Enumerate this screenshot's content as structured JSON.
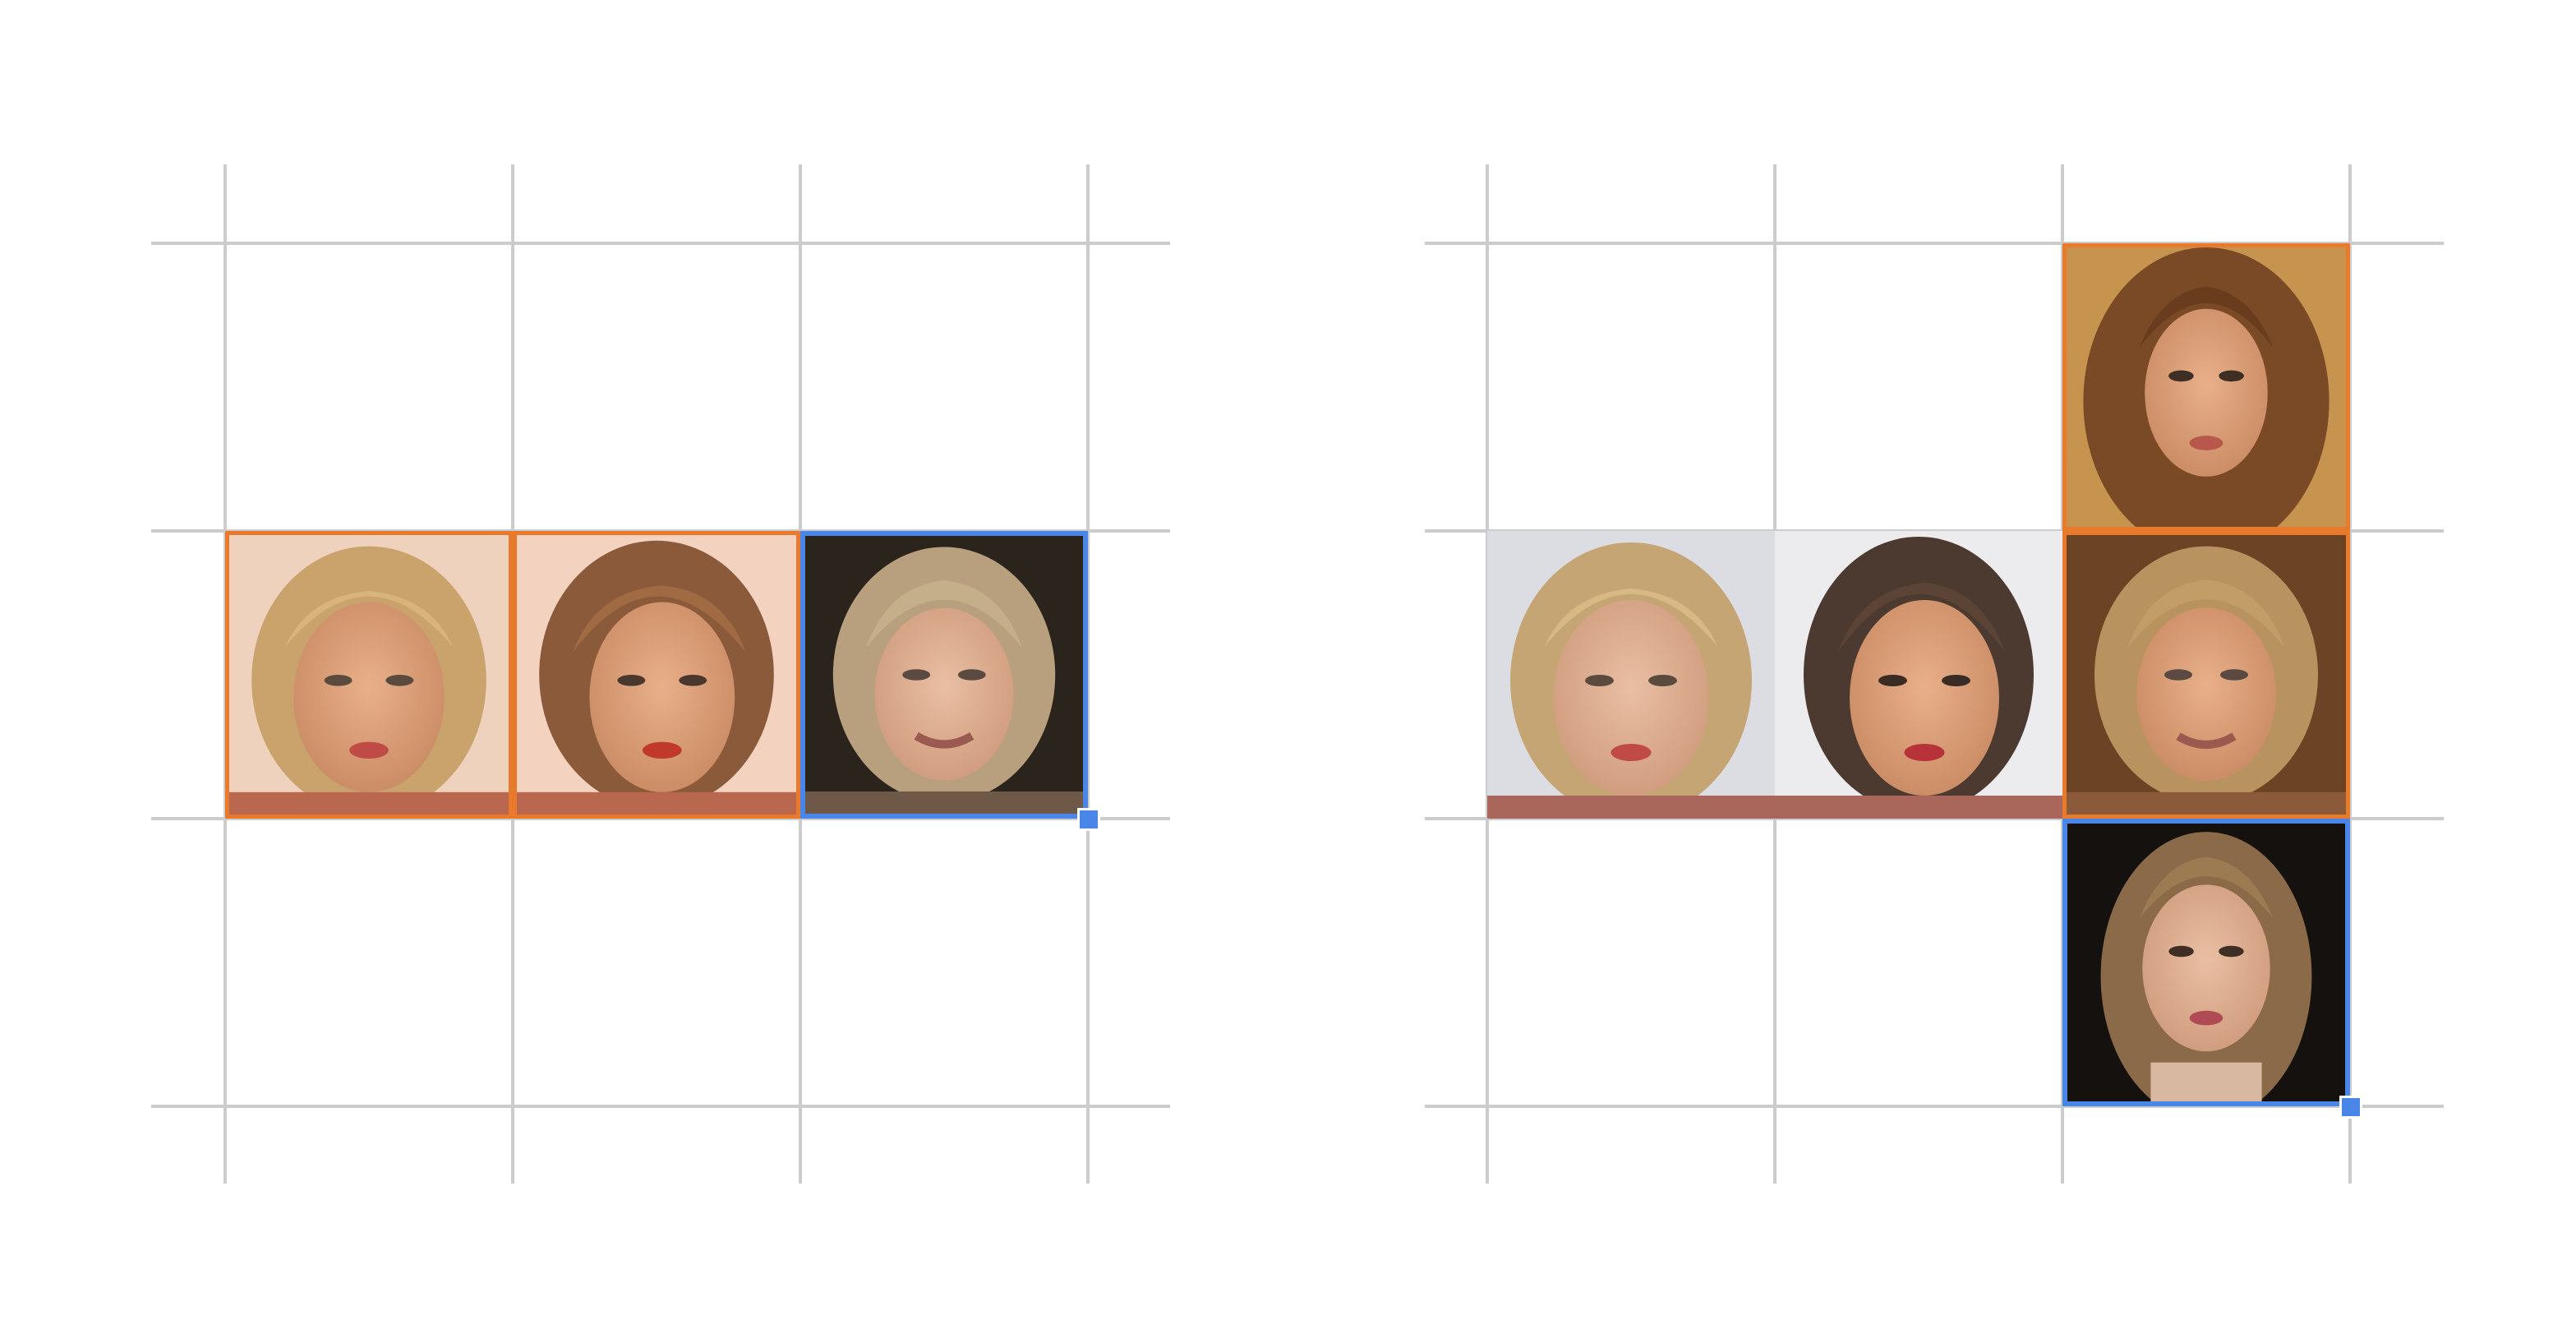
{
  "panels": [
    {
      "id": "left",
      "columns": 3,
      "rows": 3,
      "cells": [
        {
          "row": 1,
          "col": 0,
          "kind": "face",
          "subject": "blonde-bob-woman",
          "tint": "warm-peach",
          "selection": "orange"
        },
        {
          "row": 1,
          "col": 1,
          "kind": "face",
          "subject": "brunette-bob-woman",
          "tint": "warm-peach",
          "selection": "orange"
        },
        {
          "row": 1,
          "col": 2,
          "kind": "face",
          "subject": "older-blonde-woman",
          "tint": "dark-background",
          "selection": "blue"
        }
      ],
      "fill_handle": {
        "row": 1,
        "col": 2
      }
    },
    {
      "id": "right",
      "columns": 3,
      "rows": 3,
      "cells": [
        {
          "row": 0,
          "col": 2,
          "kind": "face",
          "subject": "long-haired-brunette-woman",
          "tint": "warm-brown",
          "selection": "orange"
        },
        {
          "row": 1,
          "col": 0,
          "kind": "face",
          "subject": "blonde-bob-woman",
          "tint": "neutral-grey",
          "selection": "none"
        },
        {
          "row": 1,
          "col": 1,
          "kind": "face",
          "subject": "brunette-bob-woman",
          "tint": "neutral-grey",
          "selection": "none"
        },
        {
          "row": 1,
          "col": 2,
          "kind": "face",
          "subject": "older-blonde-woman",
          "tint": "warm-brown",
          "selection": "orange"
        },
        {
          "row": 2,
          "col": 2,
          "kind": "face",
          "subject": "long-haired-woman",
          "tint": "dark-background",
          "selection": "blue"
        }
      ],
      "fill_handle": {
        "row": 2,
        "col": 2
      }
    }
  ],
  "colors": {
    "grid_line": "#cccccc",
    "selection_orange": "#ea7a2b",
    "selection_blue": "#4a86e8",
    "fill_handle": "#4a86e8",
    "background": "#ffffff"
  }
}
